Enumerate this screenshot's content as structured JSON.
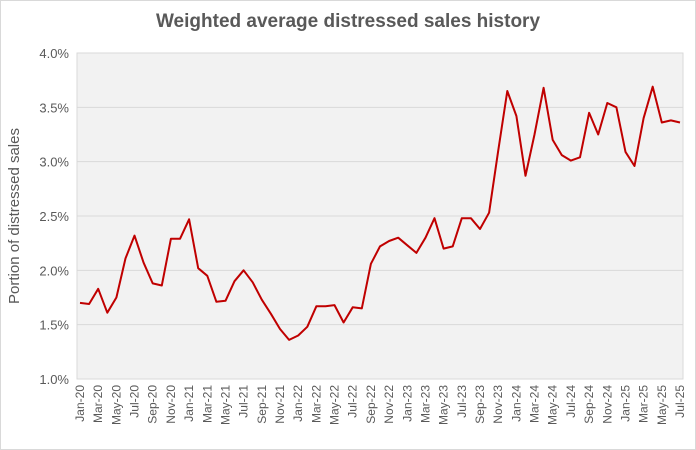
{
  "chart_data": {
    "type": "line",
    "title": "Weighted average distressed sales history",
    "xlabel": "",
    "ylabel": "Portion of distressed sales",
    "ylim": [
      0.01,
      0.04
    ],
    "yticks": [
      "1.0%",
      "1.5%",
      "2.0%",
      "2.5%",
      "3.0%",
      "3.5%",
      "4.0%"
    ],
    "grid": true,
    "legend": "none",
    "line_color": "#c00000",
    "x": [
      "Jan-20",
      "Feb-20",
      "Mar-20",
      "Apr-20",
      "May-20",
      "Jun-20",
      "Jul-20",
      "Aug-20",
      "Sep-20",
      "Oct-20",
      "Nov-20",
      "Dec-20",
      "Jan-21",
      "Feb-21",
      "Mar-21",
      "Apr-21",
      "May-21",
      "Jun-21",
      "Jul-21",
      "Aug-21",
      "Sep-21",
      "Oct-21",
      "Nov-21",
      "Dec-21",
      "Jan-22",
      "Feb-22",
      "Mar-22",
      "Apr-22",
      "May-22",
      "Jun-22",
      "Jul-22",
      "Aug-22",
      "Sep-22",
      "Oct-22",
      "Nov-22",
      "Dec-22",
      "Jan-23",
      "Feb-23",
      "Mar-23",
      "Apr-23",
      "May-23",
      "Jun-23",
      "Jul-23",
      "Aug-23",
      "Sep-23",
      "Oct-23",
      "Nov-23",
      "Dec-23",
      "Jan-24",
      "Feb-24",
      "Mar-24",
      "Apr-24",
      "May-24",
      "Jun-24",
      "Jul-24",
      "Aug-24",
      "Sep-24",
      "Oct-24",
      "Nov-24",
      "Dec-24",
      "Jan-25",
      "Feb-25",
      "Mar-25",
      "Apr-25",
      "May-25",
      "Jun-25",
      "Jul-25"
    ],
    "values": [
      0.017,
      0.0169,
      0.0183,
      0.0161,
      0.0175,
      0.0211,
      0.0232,
      0.0207,
      0.0188,
      0.0186,
      0.0229,
      0.0229,
      0.0247,
      0.0202,
      0.0195,
      0.0171,
      0.0172,
      0.019,
      0.02,
      0.0189,
      0.0173,
      0.016,
      0.0146,
      0.0136,
      0.014,
      0.0148,
      0.0167,
      0.0167,
      0.0168,
      0.0152,
      0.0166,
      0.0165,
      0.0206,
      0.0222,
      0.0227,
      0.023,
      0.0223,
      0.0216,
      0.023,
      0.0248,
      0.022,
      0.0222,
      0.0248,
      0.0248,
      0.0238,
      0.0253,
      0.031,
      0.0365,
      0.0342,
      0.0287,
      0.0325,
      0.0368,
      0.032,
      0.0306,
      0.0301,
      0.0304,
      0.0345,
      0.0325,
      0.0354,
      0.035,
      0.0309,
      0.0296,
      0.034,
      0.0369,
      0.0336,
      0.0338,
      0.0336
    ],
    "xtick_labels": [
      "Jan-20",
      "Mar-20",
      "May-20",
      "Jul-20",
      "Sep-20",
      "Nov-20",
      "Jan-21",
      "Mar-21",
      "May-21",
      "Jul-21",
      "Sep-21",
      "Nov-21",
      "Jan-22",
      "Mar-22",
      "May-22",
      "Jul-22",
      "Sep-22",
      "Nov-22",
      "Jan-23",
      "Mar-23",
      "May-23",
      "Jul-23",
      "Sep-23",
      "Nov-23",
      "Jan-24",
      "Mar-24",
      "May-24",
      "Jul-24",
      "Sep-24",
      "Nov-24",
      "Jan-25",
      "Mar-25",
      "May-25",
      "Jul-25"
    ]
  }
}
